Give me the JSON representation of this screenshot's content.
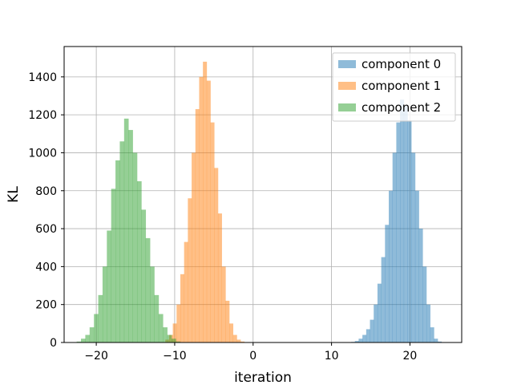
{
  "chart_data": {
    "type": "histogram",
    "title": "",
    "xlabel": "iteration",
    "ylabel": "KL",
    "xlim": [
      -24.1,
      26.6
    ],
    "ylim": [
      0,
      1560
    ],
    "xticks": [
      -20,
      -10,
      0,
      10,
      20
    ],
    "xtick_labels": [
      "−20",
      "−10",
      "0",
      "10",
      "20"
    ],
    "yticks": [
      0,
      200,
      400,
      600,
      800,
      1000,
      1200,
      1400
    ],
    "ytick_labels": [
      "0",
      "200",
      "400",
      "600",
      "800",
      "1000",
      "1200",
      "1400"
    ],
    "grid": true,
    "legend_position": "top-right",
    "series": [
      {
        "name": "component 0",
        "color": "#1f77b4",
        "bin_width": 0.48,
        "bin_starts": [
          12.5,
          12.98,
          13.46,
          13.94,
          14.42,
          14.9,
          15.38,
          15.86,
          16.34,
          16.82,
          17.3,
          17.78,
          18.26,
          18.74,
          19.22,
          19.7,
          20.18,
          20.66,
          21.14,
          21.62,
          22.1,
          22.58,
          23.06,
          23.54
        ],
        "counts": [
          3,
          8,
          20,
          40,
          70,
          120,
          200,
          310,
          450,
          620,
          800,
          1000,
          1160,
          1280,
          1250,
          1170,
          1000,
          800,
          600,
          400,
          200,
          80,
          20,
          5
        ]
      },
      {
        "name": "component 1",
        "color": "#ff7f0e",
        "bin_width": 0.48,
        "bin_starts": [
          -11.2,
          -10.72,
          -10.24,
          -9.76,
          -9.28,
          -8.8,
          -8.32,
          -7.84,
          -7.36,
          -6.88,
          -6.4,
          -5.92,
          -5.44,
          -4.96,
          -4.48,
          -4.0,
          -3.52,
          -3.04,
          -2.56,
          -2.08,
          -1.6
        ],
        "counts": [
          15,
          40,
          100,
          200,
          360,
          530,
          760,
          1000,
          1230,
          1400,
          1480,
          1380,
          1160,
          920,
          680,
          400,
          220,
          100,
          40,
          15,
          5
        ]
      },
      {
        "name": "component 2",
        "color": "#2ca02c",
        "bin_width": 0.55,
        "bin_starts": [
          -22.5,
          -21.95,
          -21.4,
          -20.85,
          -20.3,
          -19.75,
          -19.2,
          -18.65,
          -18.1,
          -17.55,
          -17.0,
          -16.45,
          -15.9,
          -15.35,
          -14.8,
          -14.25,
          -13.7,
          -13.15,
          -12.6,
          -12.05,
          -11.5,
          -10.95,
          -10.4,
          -9.85
        ],
        "counts": [
          5,
          20,
          40,
          80,
          150,
          250,
          400,
          590,
          810,
          960,
          1060,
          1180,
          1120,
          1000,
          850,
          700,
          550,
          400,
          250,
          150,
          80,
          40,
          20,
          5
        ]
      }
    ]
  }
}
